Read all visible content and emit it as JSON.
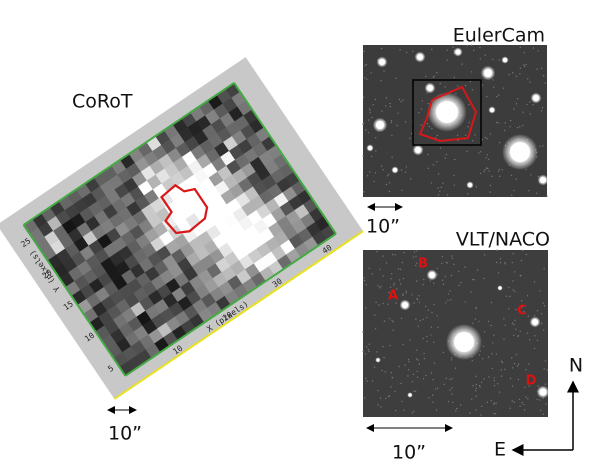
{
  "corot": {
    "title": "CoRoT",
    "x_axis_label": "X (pixels)",
    "y_axis_label": "Y (pixels)",
    "x_tick_labels": [
      "10",
      "20",
      "30",
      "40"
    ],
    "y_tick_labels": [
      "5",
      "10",
      "15",
      "20",
      "25"
    ],
    "scale_label": "10”"
  },
  "eulercam": {
    "title": "EulerCam",
    "scale_label": "10”"
  },
  "vlt_naco": {
    "title": "VLT/NACO",
    "scale_label": "10”",
    "star_labels": [
      "A",
      "B",
      "C",
      "D"
    ]
  },
  "compass": {
    "north": "N",
    "east": "E"
  }
}
